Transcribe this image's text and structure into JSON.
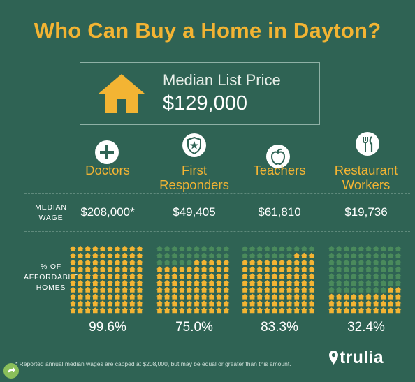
{
  "title": "Who Can Buy a Home in Dayton?",
  "price": {
    "label": "Median List Price",
    "value": "$129,000",
    "icon": "house-icon"
  },
  "labels": {
    "median_wage": [
      "MEDIAN",
      "WAGE"
    ],
    "affordable": [
      "% OF",
      "AFFORDABLE",
      "HOMES"
    ]
  },
  "occupations": [
    {
      "name": [
        "",
        "Doctors"
      ],
      "icon": "plus-icon",
      "wage": "$208,000*",
      "pct_text": "99.6%",
      "pct": 99.6
    },
    {
      "name": [
        "First",
        "Responders"
      ],
      "icon": "shield-star-icon",
      "wage": "$49,405",
      "pct_text": "75.0%",
      "pct": 75.0
    },
    {
      "name": [
        "",
        "Teachers"
      ],
      "icon": "apple-icon",
      "wage": "$61,810",
      "pct_text": "83.3%",
      "pct": 83.3
    },
    {
      "name": [
        "Restaurant",
        "Workers"
      ],
      "icon": "fork-knife-icon",
      "wage": "$19,736",
      "pct_text": "32.4%",
      "pct": 32.4
    }
  ],
  "colors": {
    "background": "#2f6354",
    "accent": "#f3b433",
    "house_dim": "#4a8a5c"
  },
  "footnote": "* Reported annual median wages are capped at $208,000, but may be equal or greater than this amount.",
  "logo": "trulia"
}
